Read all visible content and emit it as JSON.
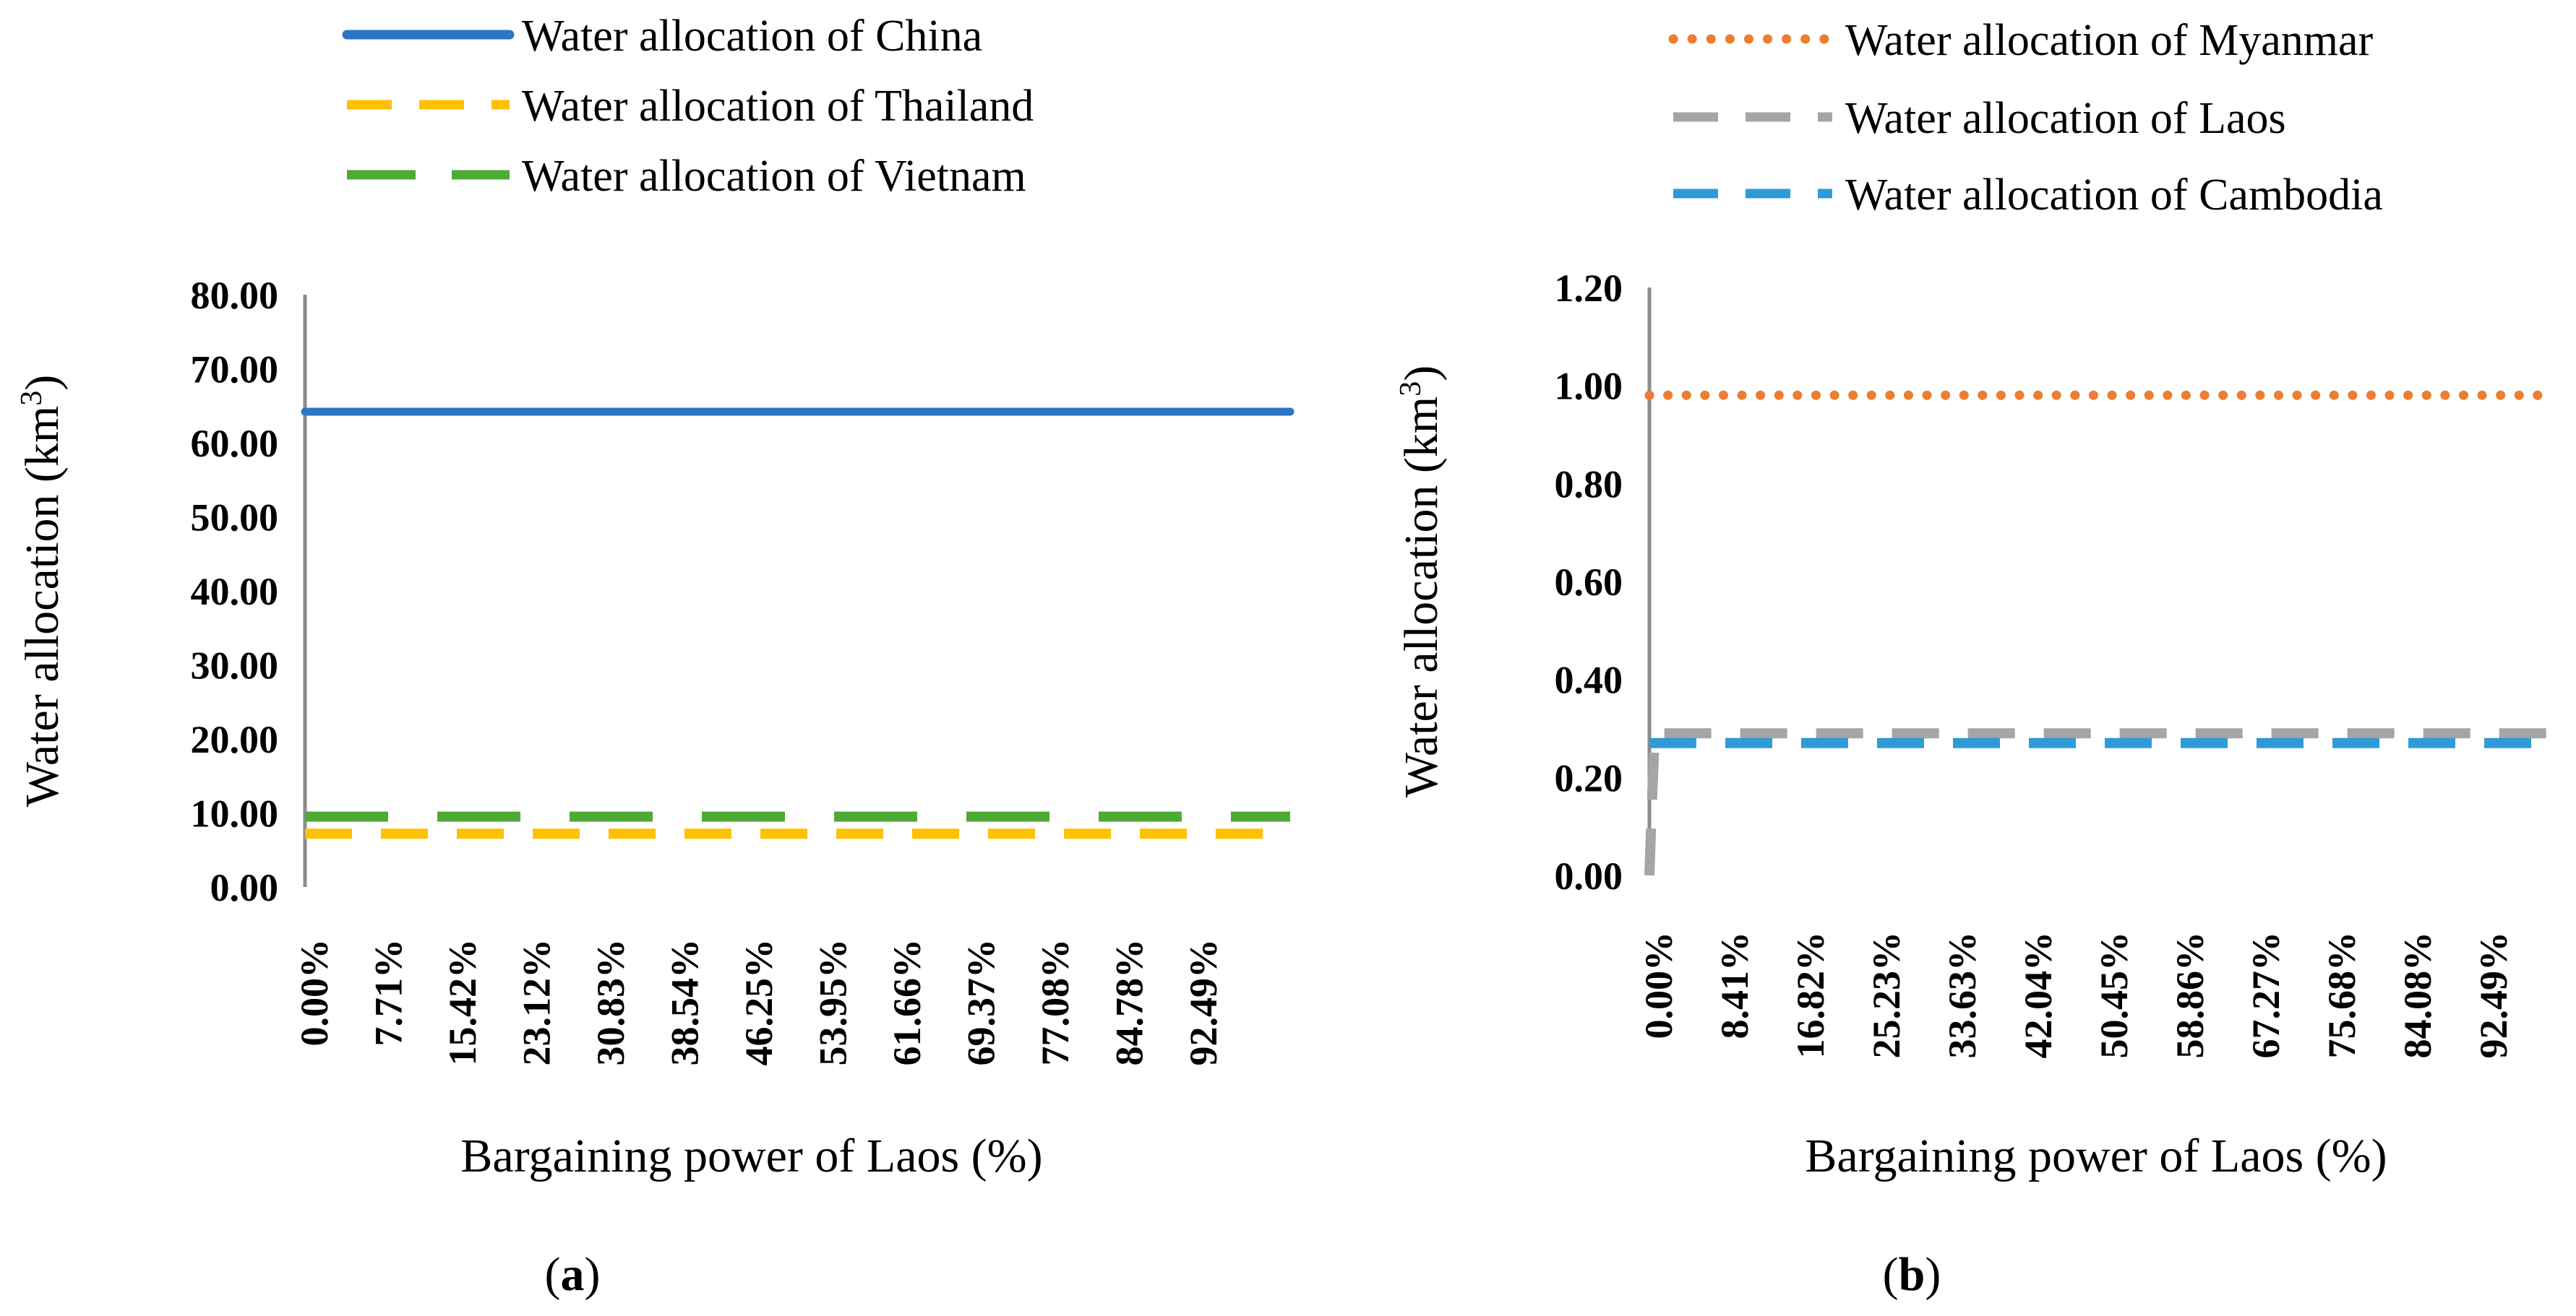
{
  "chart_data": [
    {
      "type": "line",
      "panel_label": "(a)",
      "panel_label_letter": "a",
      "xlabel": "Bargaining power of Laos (%)",
      "ylabel": "Water allocation (km3)",
      "ylabel_main": "Water allocation (km",
      "ylabel_sup": "3",
      "ylabel_close": ")",
      "ylim": [
        0,
        80
      ],
      "y_ticks": [
        "0.00",
        "10.00",
        "20.00",
        "30.00",
        "40.00",
        "50.00",
        "60.00",
        "70.00",
        "80.00"
      ],
      "x_tick_labels": [
        "0.00%",
        "7.71%",
        "15.42%",
        "23.12%",
        "30.83%",
        "38.54%",
        "46.25%",
        "53.95%",
        "61.66%",
        "69.37%",
        "77.08%",
        "84.78%",
        "92.49%"
      ],
      "x_range": [
        0,
        100
      ],
      "grid": false,
      "legend_position": "top",
      "series": [
        {
          "name": "Water allocation of China",
          "color": "#2E75C8",
          "style": "solid",
          "x": [
            0,
            100
          ],
          "values": [
            64.2,
            64.2
          ]
        },
        {
          "name": "Water allocation of Thailand",
          "color": "#FFC000",
          "style": "dash",
          "x": [
            0,
            100
          ],
          "values": [
            7.2,
            7.2
          ]
        },
        {
          "name": "Water allocation of Vietnam",
          "color": "#4DAA35",
          "style": "longdash",
          "x": [
            0,
            100
          ],
          "values": [
            9.5,
            9.5
          ]
        }
      ]
    },
    {
      "type": "line",
      "panel_label": "(b)",
      "panel_label_letter": "b",
      "xlabel": "Bargaining power of Laos (%)",
      "ylabel": "Water allocation (km3)",
      "ylabel_main": "Water allocation (km",
      "ylabel_sup": "3",
      "ylabel_close": ")",
      "ylim": [
        0,
        1.2
      ],
      "y_ticks": [
        "0.00",
        "0.20",
        "0.40",
        "0.60",
        "0.80",
        "1.00",
        "1.20"
      ],
      "x_tick_labels": [
        "0.00%",
        "8.41%",
        "16.82%",
        "25.23%",
        "33.63%",
        "42.04%",
        "50.45%",
        "58.86%",
        "67.27%",
        "75.68%",
        "84.08%",
        "92.49%"
      ],
      "x_range": [
        0,
        100
      ],
      "grid": false,
      "legend_position": "top",
      "series": [
        {
          "name": "Water allocation  of Myanmar",
          "color": "#ED7D31",
          "style": "dot",
          "x": [
            0,
            100
          ],
          "values": [
            0.98,
            0.98
          ]
        },
        {
          "name": "Water allocation of Laos",
          "color": "#A5A5A5",
          "style": "dash",
          "x": [
            0,
            0.3,
            0.6,
            100
          ],
          "values": [
            0.0,
            0.16,
            0.29,
            0.29
          ]
        },
        {
          "name": "Water allocation of Cambodia",
          "color": "#2E9BD6",
          "style": "dash",
          "x": [
            0,
            100
          ],
          "values": [
            0.27,
            0.27
          ]
        }
      ]
    }
  ]
}
